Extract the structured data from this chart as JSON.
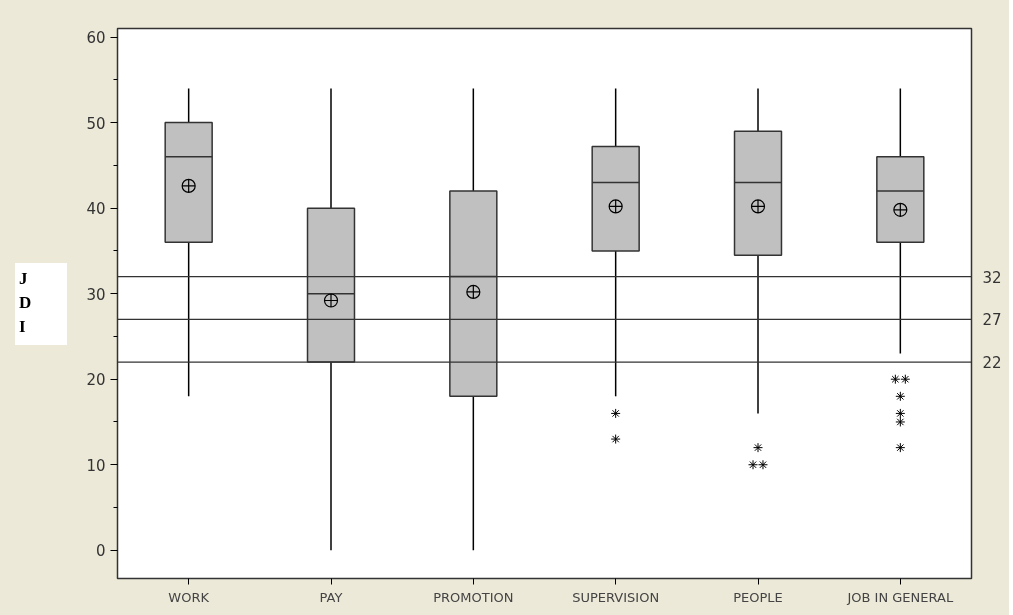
{
  "chart_data": {
    "type": "box",
    "ylabel": "JDI",
    "categories": [
      "WORK",
      "PAY",
      "PROMOTION",
      "SUPERVISION",
      "PEOPLE",
      "JOB IN GENERAL"
    ],
    "boxes": [
      {
        "low": 18,
        "q1": 36,
        "median": 46,
        "q3": 50,
        "high": 54,
        "mean": 42.6
      },
      {
        "low": 0,
        "q1": 22,
        "median": 30,
        "q3": 40,
        "high": 54,
        "mean": 29.2
      },
      {
        "low": 0,
        "q1": 18,
        "median": 32,
        "q3": 42,
        "high": 54,
        "mean": 30.2
      },
      {
        "low": 18,
        "q1": 35,
        "median": 43,
        "q3": 47.2,
        "high": 54,
        "mean": 40.2,
        "outliers": [
          16,
          13
        ]
      },
      {
        "low": 16,
        "q1": 34.5,
        "median": 43,
        "q3": 49,
        "high": 54,
        "mean": 40.2,
        "outliers": [
          12,
          10,
          10
        ]
      },
      {
        "low": 23,
        "q1": 36,
        "median": 42,
        "q3": 46,
        "high": 54,
        "mean": 39.8,
        "outliers": [
          20,
          20,
          18,
          16,
          15,
          12
        ]
      }
    ],
    "color": "#c0c0c0",
    "ylim": [
      -3.3,
      61
    ],
    "yticks": [
      0,
      10,
      20,
      30,
      40,
      50,
      60
    ],
    "ref_lines": [
      {
        "axis": "y",
        "value": 32,
        "label": "32"
      },
      {
        "axis": "y",
        "value": 27,
        "label": "27"
      },
      {
        "axis": "y",
        "value": 22,
        "label": "22"
      }
    ],
    "grid": false
  }
}
